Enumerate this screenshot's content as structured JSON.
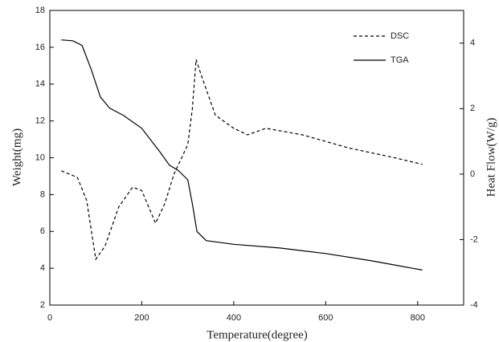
{
  "chart_data": {
    "type": "line",
    "x_label": "Temperature(degree)",
    "y_label": "Weight(mg)",
    "y2_label": "Heat Flow(W/g)",
    "xlim": [
      0,
      900
    ],
    "xticks": [
      0,
      200,
      400,
      600,
      800
    ],
    "ylim": [
      2,
      18
    ],
    "yticks": [
      2,
      4,
      6,
      8,
      10,
      12,
      14,
      16,
      18
    ],
    "y2lim": [
      -4,
      5
    ],
    "y2ticks": [
      -4,
      -2,
      0,
      2,
      4
    ],
    "legend": "upper right",
    "series": [
      {
        "name": "DSC",
        "color": "#000000",
        "dash": true,
        "axis": "y2",
        "x": [
          25,
          60,
          80,
          100,
          120,
          150,
          180,
          200,
          230,
          250,
          270,
          300,
          310,
          318,
          330,
          360,
          400,
          430,
          470,
          550,
          650,
          750,
          810
        ],
        "values": [
          0.1,
          -0.1,
          -0.8,
          -2.6,
          -2.2,
          -1.0,
          -0.4,
          -0.5,
          -1.5,
          -0.9,
          0.0,
          0.9,
          2.0,
          3.5,
          3.0,
          1.8,
          1.4,
          1.2,
          1.4,
          1.2,
          0.8,
          0.5,
          0.3
        ]
      },
      {
        "name": "TGA",
        "color": "#000000",
        "dash": false,
        "x": [
          25,
          50,
          70,
          90,
          110,
          130,
          160,
          200,
          240,
          260,
          280,
          300,
          310,
          320,
          340,
          400,
          500,
          600,
          700,
          810
        ],
        "values": [
          16.4,
          16.35,
          16.1,
          14.8,
          13.3,
          12.7,
          12.3,
          11.6,
          10.3,
          9.6,
          9.3,
          8.8,
          7.5,
          6.0,
          5.5,
          5.3,
          5.1,
          4.8,
          4.4,
          3.9
        ]
      }
    ]
  }
}
